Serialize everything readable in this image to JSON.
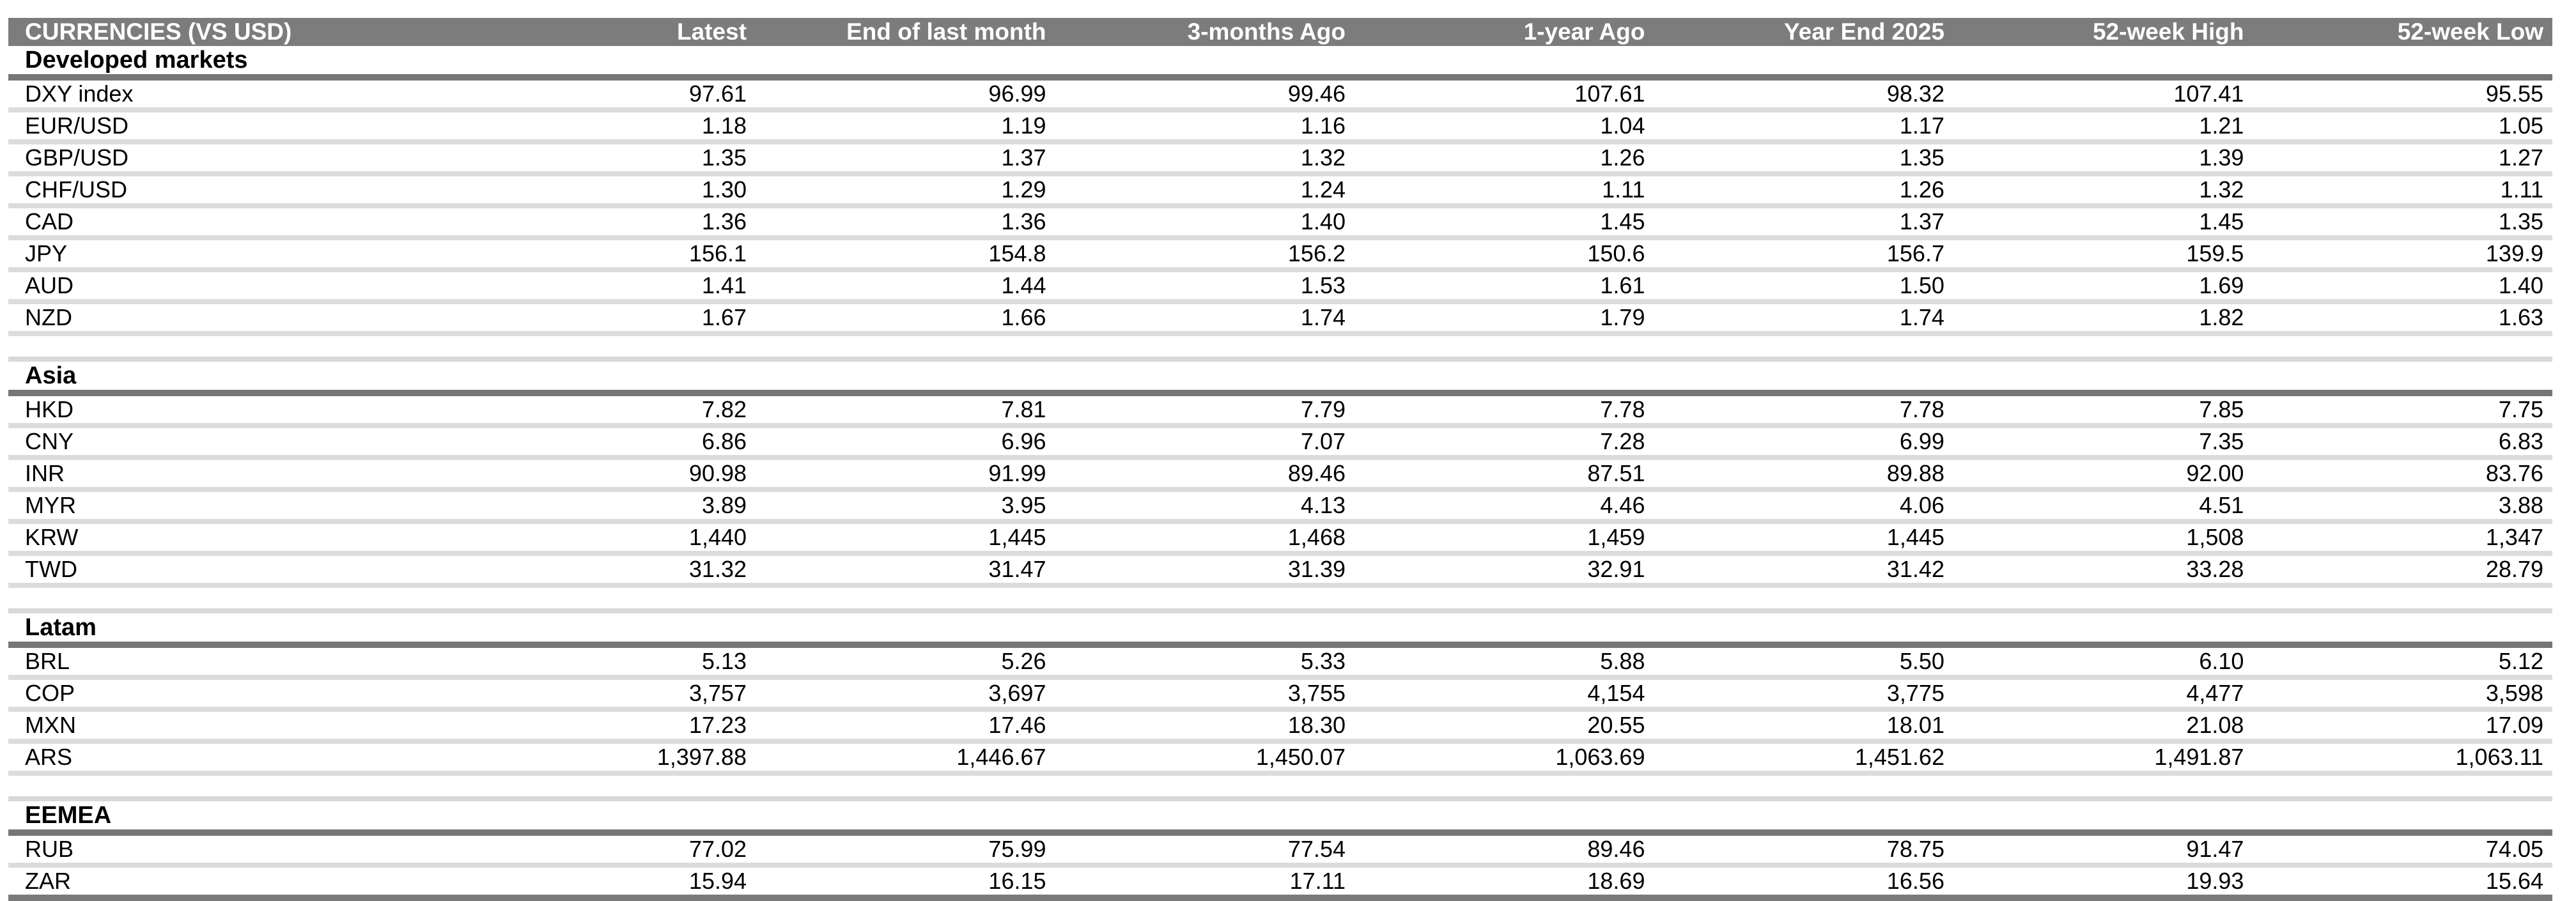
{
  "chart_data": {
    "type": "table",
    "title": "CURRENCIES (VS USD)",
    "columns": [
      "CURRENCIES (VS USD)",
      "Latest",
      "End of last month",
      "3-months Ago",
      "1-year Ago",
      "Year End 2025",
      "52-week High",
      "52-week Low"
    ],
    "sections": [
      {
        "name": "Developed markets",
        "rows": [
          [
            "DXY index",
            "97.61",
            "96.99",
            "99.46",
            "107.61",
            "98.32",
            "107.41",
            "95.55"
          ],
          [
            "EUR/USD",
            "1.18",
            "1.19",
            "1.16",
            "1.04",
            "1.17",
            "1.21",
            "1.05"
          ],
          [
            "GBP/USD",
            "1.35",
            "1.37",
            "1.32",
            "1.26",
            "1.35",
            "1.39",
            "1.27"
          ],
          [
            "CHF/USD",
            "1.30",
            "1.29",
            "1.24",
            "1.11",
            "1.26",
            "1.32",
            "1.11"
          ],
          [
            "CAD",
            "1.36",
            "1.36",
            "1.40",
            "1.45",
            "1.37",
            "1.45",
            "1.35"
          ],
          [
            "JPY",
            "156.1",
            "154.8",
            "156.2",
            "150.6",
            "156.7",
            "159.5",
            "139.9"
          ],
          [
            "AUD",
            "1.41",
            "1.44",
            "1.53",
            "1.61",
            "1.50",
            "1.69",
            "1.40"
          ],
          [
            "NZD",
            "1.67",
            "1.66",
            "1.74",
            "1.79",
            "1.74",
            "1.82",
            "1.63"
          ]
        ]
      },
      {
        "name": "Asia",
        "rows": [
          [
            "HKD",
            "7.82",
            "7.81",
            "7.79",
            "7.78",
            "7.78",
            "7.85",
            "7.75"
          ],
          [
            "CNY",
            "6.86",
            "6.96",
            "7.07",
            "7.28",
            "6.99",
            "7.35",
            "6.83"
          ],
          [
            "INR",
            "90.98",
            "91.99",
            "89.46",
            "87.51",
            "89.88",
            "92.00",
            "83.76"
          ],
          [
            "MYR",
            "3.89",
            "3.95",
            "4.13",
            "4.46",
            "4.06",
            "4.51",
            "3.88"
          ],
          [
            "KRW",
            "1,440",
            "1,445",
            "1,468",
            "1,459",
            "1,445",
            "1,508",
            "1,347"
          ],
          [
            "TWD",
            "31.32",
            "31.47",
            "31.39",
            "32.91",
            "31.42",
            "33.28",
            "28.79"
          ]
        ]
      },
      {
        "name": "Latam",
        "rows": [
          [
            "BRL",
            "5.13",
            "5.26",
            "5.33",
            "5.88",
            "5.50",
            "6.10",
            "5.12"
          ],
          [
            "COP",
            "3,757",
            "3,697",
            "3,755",
            "4,154",
            "3,775",
            "4,477",
            "3,598"
          ],
          [
            "MXN",
            "17.23",
            "17.46",
            "18.30",
            "20.55",
            "18.01",
            "21.08",
            "17.09"
          ],
          [
            "ARS",
            "1,397.88",
            "1,446.67",
            "1,450.07",
            "1,063.69",
            "1,451.62",
            "1,491.87",
            "1,063.11"
          ]
        ]
      },
      {
        "name": "EEMEA",
        "rows": [
          [
            "RUB",
            "77.02",
            "75.99",
            "77.54",
            "89.46",
            "78.75",
            "91.47",
            "74.05"
          ],
          [
            "ZAR",
            "15.94",
            "16.15",
            "17.11",
            "18.69",
            "16.56",
            "19.93",
            "15.64"
          ]
        ]
      }
    ],
    "layout": {
      "currency_column_width_pct": 17.6,
      "value_column_width_pct": 11.77,
      "grid": "horizontal-dividers-only"
    }
  },
  "colors": {
    "header_bg": "#7c7c7c",
    "header_text": "#ffffff",
    "section_rule": "#767676",
    "row_divider": "#dcdcdc",
    "table_end_rule": "#7a7a7a",
    "body_text": "#000000",
    "background": "#ffffff"
  }
}
